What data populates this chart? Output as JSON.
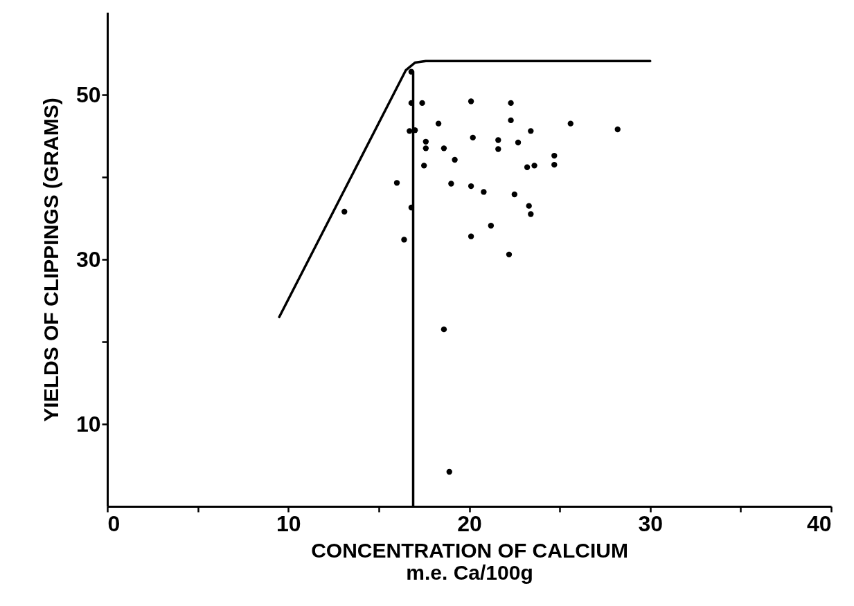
{
  "chart_data": {
    "type": "scatter",
    "xlabel": "CONCENTRATION OF CALCIUM\nm.e. Ca/100g",
    "ylabel": "YIELDS OF CLIPPINGS (GRAMS)",
    "xlim": [
      0,
      40
    ],
    "ylim": [
      0,
      60
    ],
    "xticks": [
      0,
      {
        "value": 5,
        "label": null
      },
      10,
      {
        "value": 15,
        "label": null
      },
      20,
      {
        "value": 25,
        "label": null
      },
      30,
      {
        "value": 35,
        "label": null
      },
      40
    ],
    "yticks": [
      10,
      {
        "value": 20,
        "label": null
      },
      30,
      {
        "value": 40,
        "label": null
      },
      50
    ],
    "grid": false,
    "series": [
      {
        "type": "line",
        "marker": "none",
        "color": "#000000",
        "x": [
          9.5,
          16.5,
          17.0,
          17.6,
          30.0
        ],
        "values": [
          23.0,
          53.0,
          53.9,
          54.1,
          54.1
        ]
      },
      {
        "type": "line",
        "marker": "none",
        "color": "#000000",
        "x": [
          16.9,
          16.9
        ],
        "values": [
          0,
          52.8
        ]
      },
      {
        "marker": "circle",
        "color": "#000000",
        "x": [
          16.8,
          16.8,
          17.4,
          20.1,
          22.3,
          22.3,
          18.3,
          25.6,
          28.2,
          16.7,
          17.0,
          23.4,
          20.2,
          17.6,
          21.6,
          22.7,
          17.6,
          18.6,
          21.6,
          19.2,
          24.7,
          24.7,
          17.5,
          23.2,
          23.6,
          16.0,
          19.0,
          20.1,
          20.8,
          22.5,
          23.3,
          23.4,
          16.8,
          21.2,
          16.4,
          20.1,
          22.2,
          13.1,
          18.6,
          18.9
        ],
        "values": [
          52.8,
          49.0,
          49.0,
          49.2,
          49.0,
          46.9,
          46.5,
          46.5,
          45.8,
          45.6,
          45.7,
          45.6,
          44.8,
          44.3,
          44.5,
          44.2,
          43.5,
          43.5,
          43.4,
          42.1,
          42.6,
          41.5,
          41.4,
          41.2,
          41.4,
          39.3,
          39.2,
          38.9,
          38.2,
          37.9,
          36.5,
          35.5,
          36.3,
          34.1,
          32.4,
          32.8,
          30.6,
          35.8,
          21.5,
          4.2
        ]
      }
    ]
  }
}
